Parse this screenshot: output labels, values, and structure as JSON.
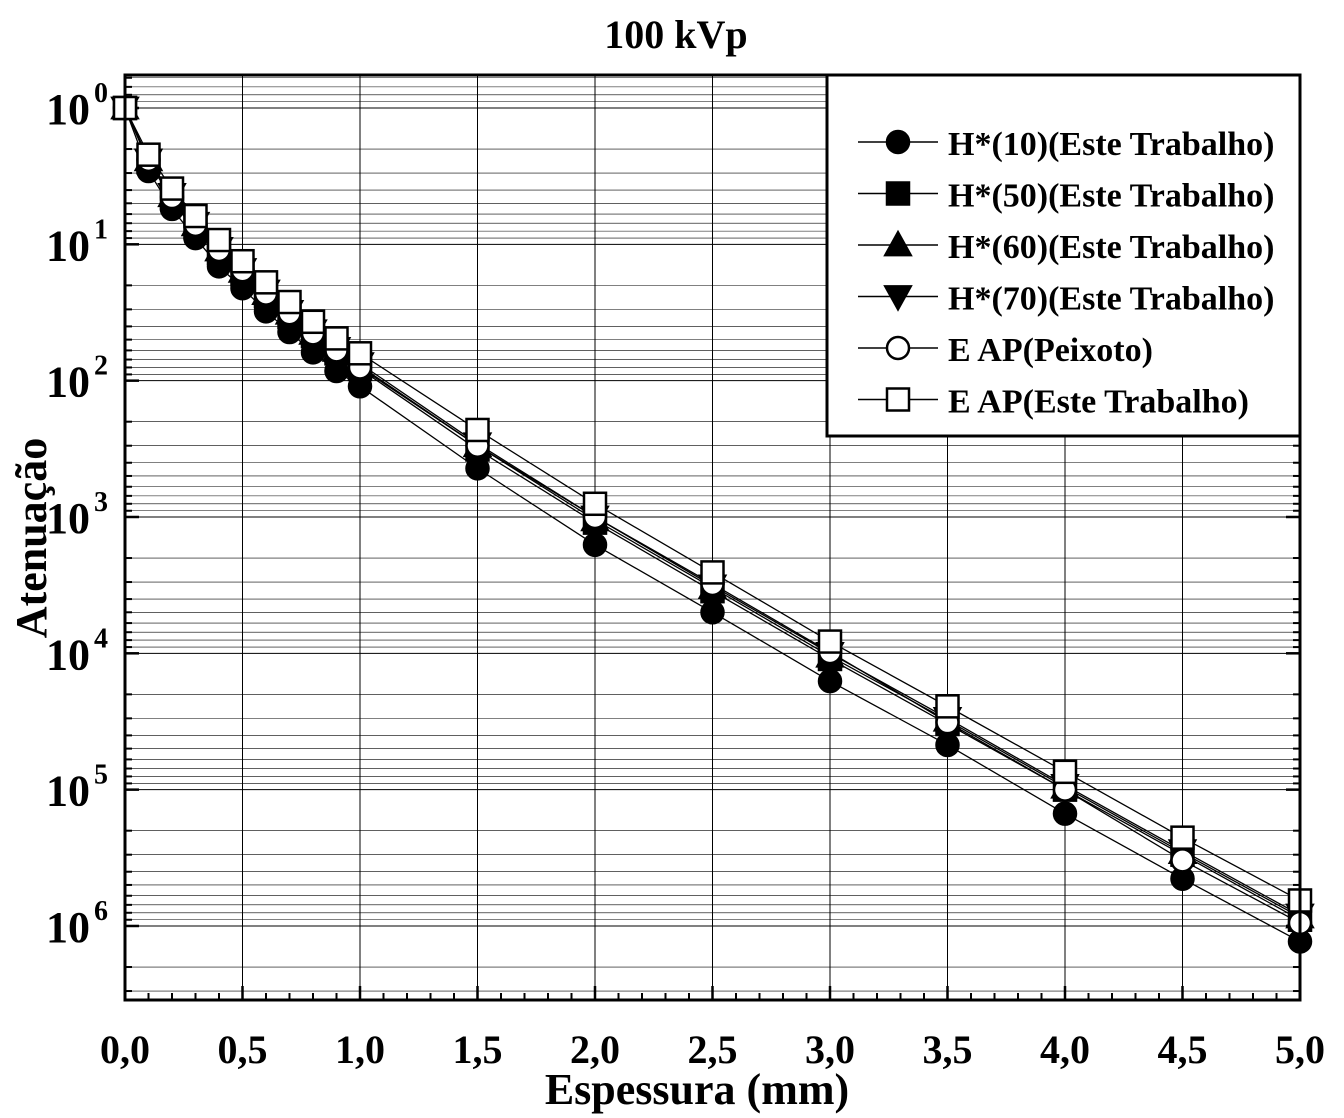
{
  "chart_data": {
    "type": "line",
    "title": "100 kVp",
    "xlabel": "Espessura (mm)",
    "ylabel": "Atenuação",
    "xlim": [
      0,
      5
    ],
    "ylim": [
      1,
      5000000
    ],
    "y_scale": "log",
    "y_axis_inverted": true,
    "grid": true,
    "legend_position": "top-right",
    "x_ticks": [
      0,
      0.5,
      1,
      1.5,
      2,
      2.5,
      3,
      3.5,
      4,
      4.5,
      5
    ],
    "x_tick_labels": [
      "0,0",
      "0,5",
      "1,0",
      "1,5",
      "2,0",
      "2,5",
      "3,0",
      "3,5",
      "4,0",
      "4,5",
      "5,0"
    ],
    "y_ticks": [
      1,
      10,
      100,
      1000,
      10000,
      100000,
      1000000
    ],
    "y_tick_labels": [
      {
        "base": "10",
        "exp": "0"
      },
      {
        "base": "10",
        "exp": "1"
      },
      {
        "base": "10",
        "exp": "2"
      },
      {
        "base": "10",
        "exp": "3"
      },
      {
        "base": "10",
        "exp": "4"
      },
      {
        "base": "10",
        "exp": "5"
      },
      {
        "base": "10",
        "exp": "6"
      }
    ],
    "x": [
      0,
      0.1,
      0.2,
      0.3,
      0.4,
      0.5,
      0.6,
      0.7,
      0.8,
      0.9,
      1.0,
      1.5,
      2.0,
      2.5,
      3.0,
      3.5,
      4.0,
      4.5,
      5.0
    ],
    "series": [
      {
        "name": "H*(10)(Este Trabalho)",
        "marker": "circle",
        "filled": true,
        "values": [
          1,
          2.9,
          5.5,
          9.0,
          14.5,
          21,
          31,
          44,
          62,
          85,
          110,
          440,
          1600,
          5000,
          16000,
          47000,
          150000,
          450000,
          1300000
        ]
      },
      {
        "name": "H*(50)(Este Trabalho)",
        "marker": "square",
        "filled": true,
        "values": [
          1,
          2.5,
          4.6,
          7.5,
          11.5,
          16.5,
          24,
          34,
          47,
          63,
          82,
          320,
          1100,
          3500,
          11000,
          33000,
          100000,
          300000,
          900000
        ]
      },
      {
        "name": "H*(60)(Este Trabalho)",
        "marker": "triangle-up",
        "filled": true,
        "values": [
          1,
          2.4,
          4.4,
          7.2,
          11.0,
          15.8,
          23,
          32,
          45,
          60,
          78,
          300,
          1050,
          3300,
          10500,
          31000,
          96000,
          290000,
          860000
        ]
      },
      {
        "name": "H*(70)(Este Trabalho)",
        "marker": "triangle-down",
        "filled": true,
        "values": [
          1,
          2.4,
          4.3,
          7.0,
          10.7,
          15.3,
          22,
          31,
          43,
          58,
          75,
          290,
          1000,
          3200,
          10000,
          30000,
          93000,
          280000,
          830000
        ]
      },
      {
        "name": "E AP(Peixoto)",
        "marker": "circle",
        "filled": false,
        "values": [
          1,
          2.4,
          4.5,
          7.2,
          11.0,
          15.5,
          23,
          32,
          45,
          60,
          80,
          300,
          1000,
          3100,
          9800,
          32000,
          100000,
          330000,
          950000
        ]
      },
      {
        "name": "E AP(Este Trabalho)",
        "marker": "square",
        "filled": false,
        "values": [
          1,
          2.2,
          3.9,
          6.2,
          9.3,
          13.3,
          19,
          26.5,
          37,
          49,
          63,
          230,
          800,
          2550,
          8200,
          24500,
          74000,
          225000,
          650000
        ]
      }
    ]
  }
}
